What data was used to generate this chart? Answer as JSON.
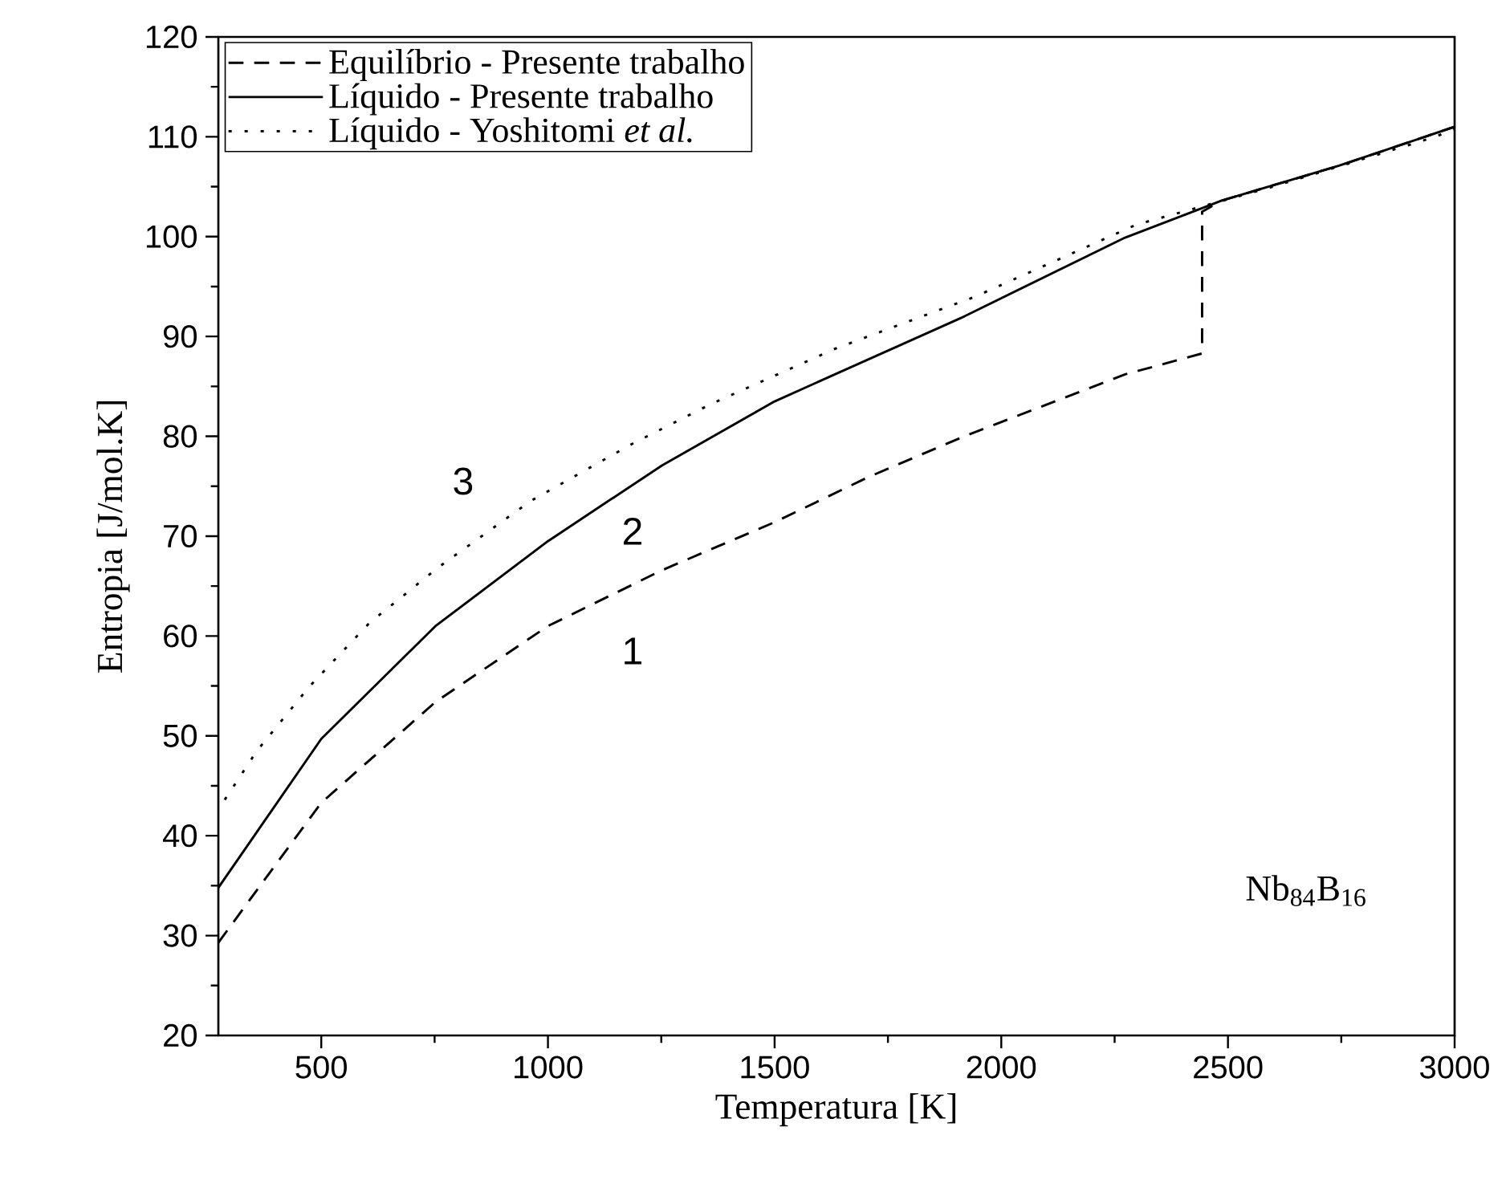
{
  "chart_data": {
    "type": "line",
    "xlabel": "Temperatura [K]",
    "ylabel": "Entropia [J/mol.K]",
    "xlim": [
      273,
      3000
    ],
    "ylim": [
      20,
      120
    ],
    "xticks": [
      500,
      1000,
      1500,
      2000,
      2500,
      3000
    ],
    "yticks": [
      20,
      30,
      40,
      50,
      60,
      70,
      80,
      90,
      100,
      110,
      120
    ],
    "grid": false,
    "legend": "top left",
    "marker": "none",
    "series": [
      {
        "name": "Equilíbrio - Presente trabalho",
        "color": "#000000",
        "line_style": "dashed",
        "x": [
          273,
          500,
          752,
          1000,
          1252,
          1500,
          1706,
          1918,
          2273,
          2443,
          2443,
          2486,
          2745,
          3000
        ],
        "values": [
          29.3,
          43.3,
          53.4,
          61.0,
          66.6,
          71.4,
          75.9,
          80.0,
          86.2,
          88.3,
          102.5,
          103.6,
          107.1,
          111.0
        ]
      },
      {
        "name": "Líquido - Presente trabalho",
        "color": "#000000",
        "line_style": "solid",
        "x": [
          273,
          500,
          752,
          1000,
          1252,
          1500,
          1918,
          2273,
          2486,
          2745,
          3000
        ],
        "values": [
          34.8,
          49.7,
          61.0,
          69.5,
          77.1,
          83.5,
          92.0,
          99.9,
          103.6,
          107.1,
          111.0
        ]
      },
      {
        "name": "Líquido - Yoshitomi *et al.*",
        "color": "#000000",
        "line_style": "dotted",
        "x": [
          287,
          358,
          475,
          606,
          759,
          961,
          1184,
          1358,
          1635,
          1943,
          2298,
          2592,
          2958,
          3000
        ],
        "values": [
          43.6,
          48.5,
          55.0,
          61.3,
          66.9,
          73.5,
          79.2,
          83.2,
          88.8,
          94.0,
          101.2,
          104.9,
          110.0,
          110.8
        ]
      }
    ],
    "annotations": [
      "1",
      "2",
      "3",
      "Nb$_{84}$B$_{16}$"
    ]
  }
}
